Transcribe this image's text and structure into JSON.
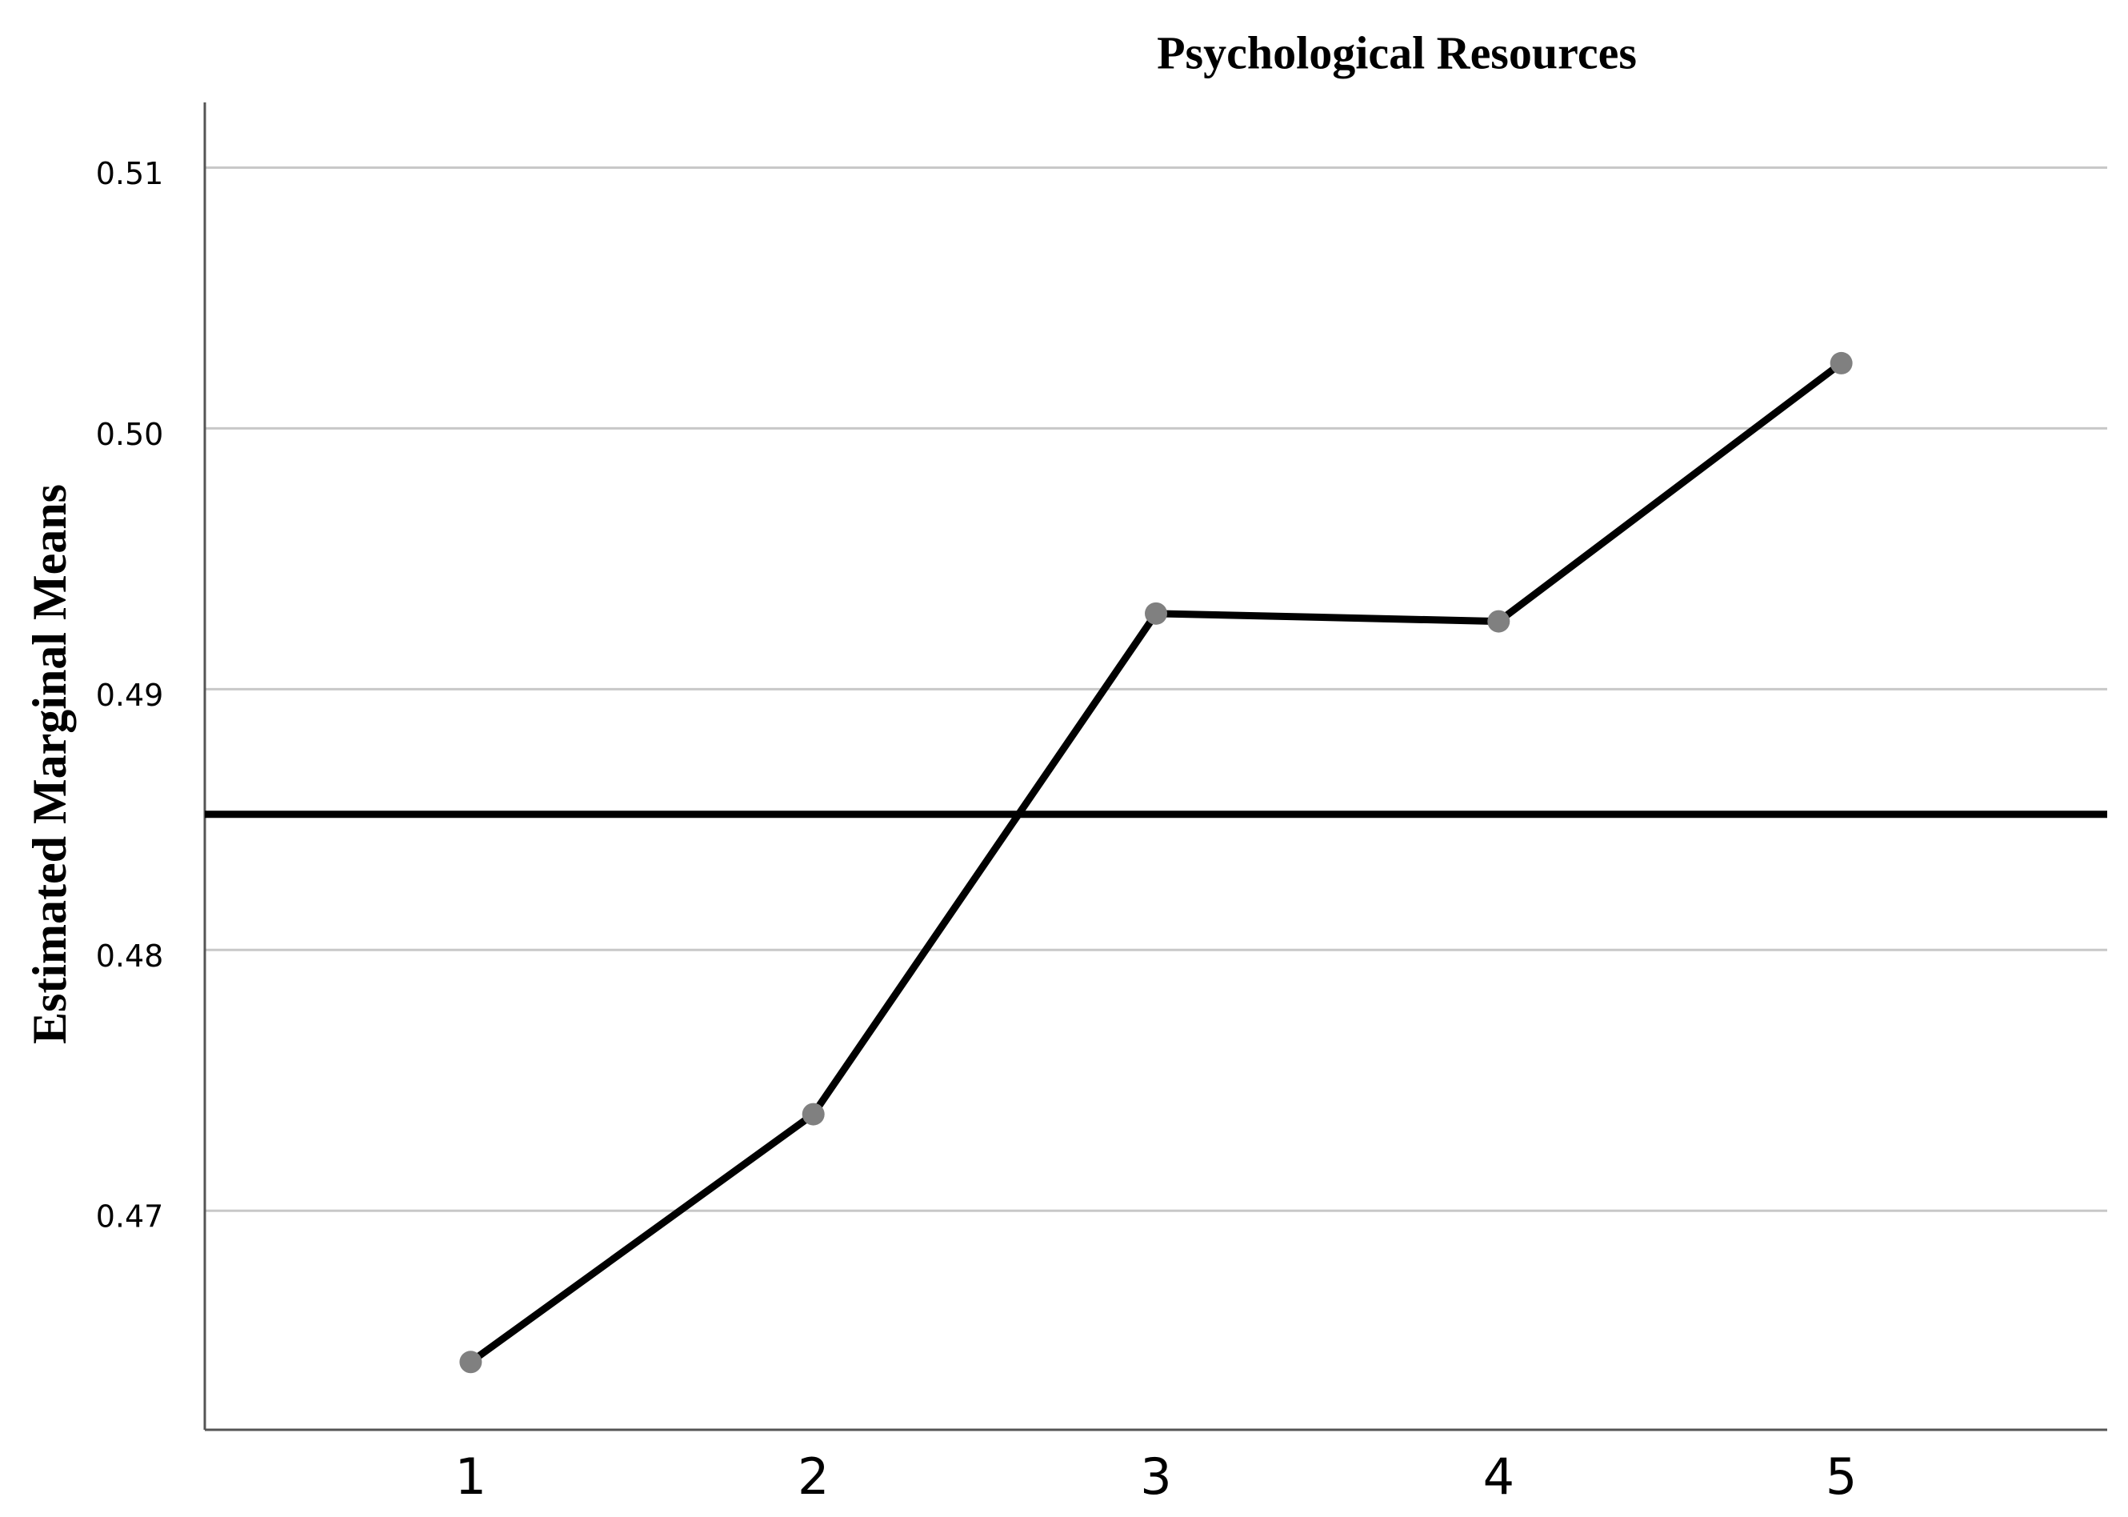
{
  "chart_data": {
    "type": "line",
    "title": "Psychological Resources",
    "y_label": "Estimated Marginal Means",
    "x": [
      1,
      2,
      3,
      4,
      5
    ],
    "values": [
      0.4642,
      0.4737,
      0.4929,
      0.4926,
      0.5025
    ],
    "color": "#000000",
    "marker_color": "#808080",
    "xlim": [
      0.224,
      5.776
    ],
    "xticks": [
      1,
      2,
      3,
      4,
      5
    ],
    "ylim": [
      0.4616,
      0.5125
    ],
    "yticks": [
      0.47,
      0.48,
      0.49,
      {
        "value": 0.5,
        "label": "0.50"
      },
      0.51
    ],
    "reference_line": 0.4852,
    "grid": true
  }
}
